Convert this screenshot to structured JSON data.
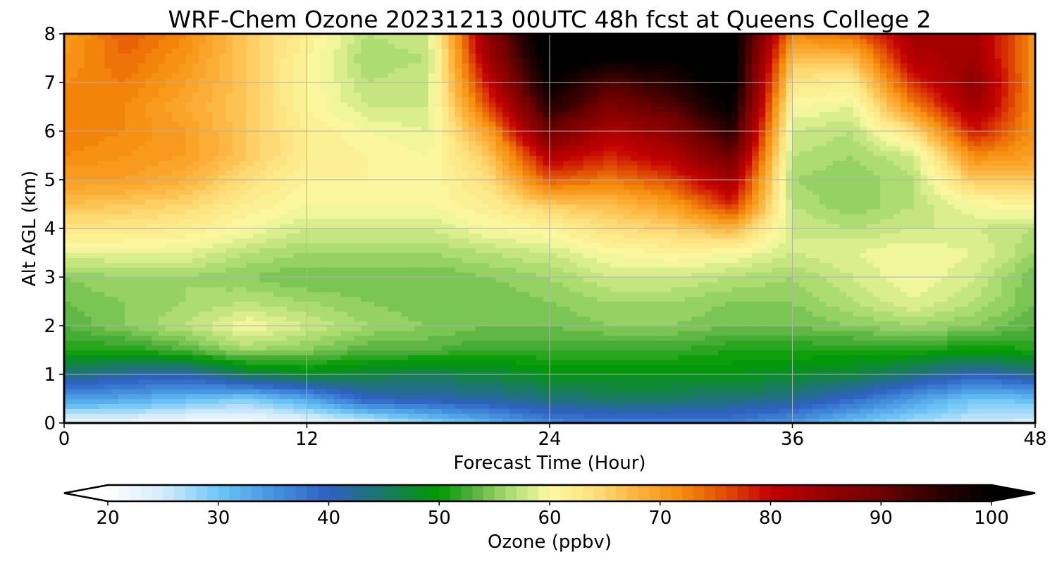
{
  "chart_data": {
    "type": "heatmap",
    "title": "WRF-Chem Ozone  20231213 00UTC 48h fcst at Queens College 2",
    "xlabel": "Forecast Time (Hour)",
    "ylabel": "Alt AGL (km)",
    "xlim": [
      0,
      48
    ],
    "ylim": [
      0,
      8
    ],
    "x_ticks": [
      "0",
      "12",
      "24",
      "36",
      "48"
    ],
    "y_ticks": [
      "0",
      "1",
      "2",
      "3",
      "4",
      "5",
      "6",
      "7",
      "8"
    ],
    "grid": true,
    "x": [
      0,
      3,
      6,
      9,
      12,
      15,
      18,
      21,
      24,
      27,
      30,
      33,
      36,
      39,
      42,
      45,
      48
    ],
    "y": [
      0,
      0.5,
      1,
      1.5,
      2,
      2.5,
      3,
      3.5,
      4,
      4.5,
      5,
      5.5,
      6,
      6.5,
      7,
      7.5,
      8
    ],
    "z": [
      [
        22,
        22,
        21,
        21,
        22,
        24,
        28,
        32,
        36,
        37,
        37,
        37,
        34,
        30,
        27,
        25,
        24
      ],
      [
        34,
        33,
        31,
        29,
        33,
        40,
        41,
        42,
        44,
        45,
        45,
        44,
        43,
        39,
        34,
        30,
        31
      ],
      [
        44,
        42,
        41,
        46,
        48,
        47,
        46,
        47,
        49,
        49,
        49,
        49,
        48,
        47,
        44,
        40,
        43
      ],
      [
        51,
        51,
        53,
        56,
        55,
        53,
        53,
        52,
        52,
        52,
        52,
        51,
        51,
        51,
        51,
        50,
        51
      ],
      [
        53,
        55,
        57,
        60,
        58,
        56,
        55,
        54,
        54,
        55,
        55,
        54,
        54,
        55,
        56,
        55,
        53
      ],
      [
        54,
        55,
        56,
        57,
        56,
        55,
        54,
        54,
        55,
        56,
        56,
        55,
        55,
        57,
        59,
        57,
        54
      ],
      [
        55,
        56,
        56,
        55,
        54,
        54,
        54,
        55,
        56,
        58,
        58,
        57,
        56,
        58,
        60,
        58,
        54
      ],
      [
        59,
        59,
        59,
        57,
        56,
        56,
        56,
        57,
        58,
        60,
        61,
        60,
        58,
        59,
        60,
        59,
        56
      ],
      [
        63,
        63,
        62,
        60,
        58,
        58,
        58,
        60,
        61,
        64,
        65,
        68,
        58,
        57,
        58,
        58,
        57
      ],
      [
        67,
        66,
        65,
        62,
        60,
        60,
        60,
        62,
        66,
        67,
        70,
        78,
        57,
        55,
        57,
        60,
        61
      ],
      [
        70,
        70,
        68,
        64,
        61,
        61,
        60,
        64,
        75,
        73,
        76,
        84,
        56,
        55,
        57,
        66,
        66
      ],
      [
        72,
        71,
        70,
        66,
        62,
        61,
        60,
        66,
        82,
        78,
        82,
        90,
        57,
        56,
        58,
        72,
        70
      ],
      [
        73,
        72,
        70,
        66,
        62,
        60,
        59,
        70,
        90,
        82,
        86,
        96,
        58,
        57,
        64,
        79,
        71
      ],
      [
        72,
        72,
        69,
        66,
        61,
        58,
        58,
        76,
        96,
        88,
        92,
        100,
        60,
        59,
        72,
        84,
        71
      ],
      [
        72,
        73,
        70,
        66,
        61,
        57,
        58,
        80,
        100,
        92,
        96,
        102,
        63,
        62,
        78,
        86,
        71
      ],
      [
        71,
        74,
        71,
        66,
        61,
        56,
        57,
        84,
        102,
        100,
        100,
        102,
        67,
        67,
        82,
        84,
        71
      ],
      [
        70,
        75,
        72,
        66,
        62,
        57,
        58,
        86,
        104,
        103,
        102,
        102,
        72,
        74,
        84,
        84,
        71
      ]
    ],
    "colorbar": {
      "label": "Ozone  (ppbv)",
      "min": 20,
      "max": 100,
      "step": 1,
      "ticks": [
        "20",
        "30",
        "40",
        "50",
        "60",
        "70",
        "80",
        "90",
        "100"
      ],
      "extend": "both",
      "color_stops": [
        [
          20,
          "#ffffff"
        ],
        [
          25,
          "#d3ecfb"
        ],
        [
          30,
          "#6ec6f7"
        ],
        [
          35,
          "#4493e0"
        ],
        [
          40,
          "#2f60c2"
        ],
        [
          45,
          "#1a7866"
        ],
        [
          50,
          "#009a00"
        ],
        [
          53,
          "#53b03f"
        ],
        [
          56,
          "#a2d96a"
        ],
        [
          60,
          "#fcfaa3"
        ],
        [
          64,
          "#fde07c"
        ],
        [
          68,
          "#fcb23b"
        ],
        [
          72,
          "#f68c0c"
        ],
        [
          76,
          "#e04a05"
        ],
        [
          80,
          "#c40000"
        ],
        [
          85,
          "#950000"
        ],
        [
          90,
          "#6e0000"
        ],
        [
          95,
          "#2e0000"
        ],
        [
          100,
          "#000000"
        ]
      ],
      "under_color": "#ffffff",
      "over_color": "#000000"
    }
  }
}
